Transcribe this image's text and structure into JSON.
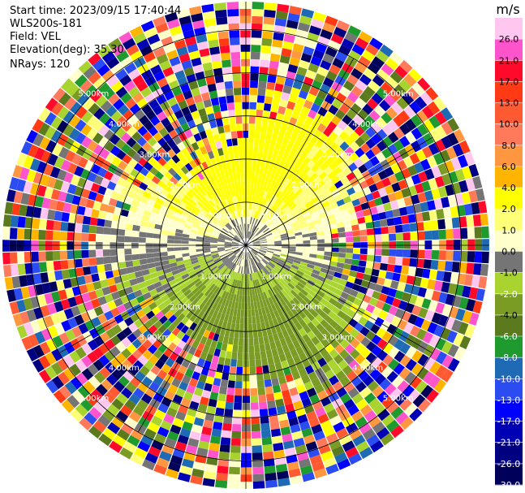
{
  "header": {
    "start_time": "Start time: 2023/09/15 17:40:44",
    "instrument": "WLS200s-181",
    "field": "Field: VEL",
    "elevation": "Elevation(deg): 35.30",
    "nrays": "NRays: 120"
  },
  "chart_data": {
    "type": "heatmap",
    "projection": "polar PPI",
    "field": "VEL",
    "units": "m/s",
    "elevation_deg": 35.3,
    "n_rays": 120,
    "range_rings_km": [
      1.0,
      2.0,
      3.0,
      4.0,
      5.0
    ],
    "ring_labels": [
      "1.00km",
      "2.00km",
      "3.00km",
      "4.00km",
      "5.00km"
    ],
    "colorbar": {
      "title": "m/s",
      "ticks": [
        "26.0",
        "21.0",
        "17.0",
        "13.0",
        "10.0",
        "8.0",
        "6.0",
        "4.0",
        "2.0",
        "1.0",
        "0.0",
        "-1.0",
        "-2.0",
        "-4.0",
        "-6.0",
        "-8.0",
        "-10.0",
        "-13.0",
        "-17.0",
        "-21.0",
        "-26.0",
        "-30.0"
      ],
      "bins": [
        {
          "max": "30.0",
          "color": "#ffc6f0"
        },
        {
          "max": "26.0",
          "color": "#ff55cc"
        },
        {
          "max": "21.0",
          "color": "#ff0a2a"
        },
        {
          "max": "17.0",
          "color": "#ff3a14"
        },
        {
          "max": "13.0",
          "color": "#ff5a32"
        },
        {
          "max": "10.0",
          "color": "#ff7a5a"
        },
        {
          "max": "8.0",
          "color": "#ff9640"
        },
        {
          "max": "6.0",
          "color": "#ffb400"
        },
        {
          "max": "4.0",
          "color": "#ffff00"
        },
        {
          "max": "2.0",
          "color": "#ffff78"
        },
        {
          "max": "1.0",
          "color": "#ffffcc"
        },
        {
          "max": "0.0",
          "color": "#757575"
        },
        {
          "max": "-1.0",
          "color": "#a9d430"
        },
        {
          "max": "-2.0",
          "color": "#7b9c24"
        },
        {
          "max": "-4.0",
          "color": "#5b7a1e"
        },
        {
          "max": "-6.0",
          "color": "#1e9a2e"
        },
        {
          "max": "-8.0",
          "color": "#1f6ab4"
        },
        {
          "max": "-10.0",
          "color": "#2a4cf0"
        },
        {
          "max": "-13.0",
          "color": "#0000ff"
        },
        {
          "max": "-17.0",
          "color": "#0000b4"
        },
        {
          "max": "-21.0",
          "color": "#000080"
        },
        {
          "max": "-26.0",
          "color": "#00005a"
        }
      ]
    },
    "pattern": {
      "north_sector": "positive velocity (approx. 2 to 6 m/s, yellow)",
      "south_sector": "negative velocity (approx. -1 to -4 m/s, green)",
      "center_band": "near zero (grey)",
      "outer_ranges": "noise, mixed colors"
    }
  }
}
